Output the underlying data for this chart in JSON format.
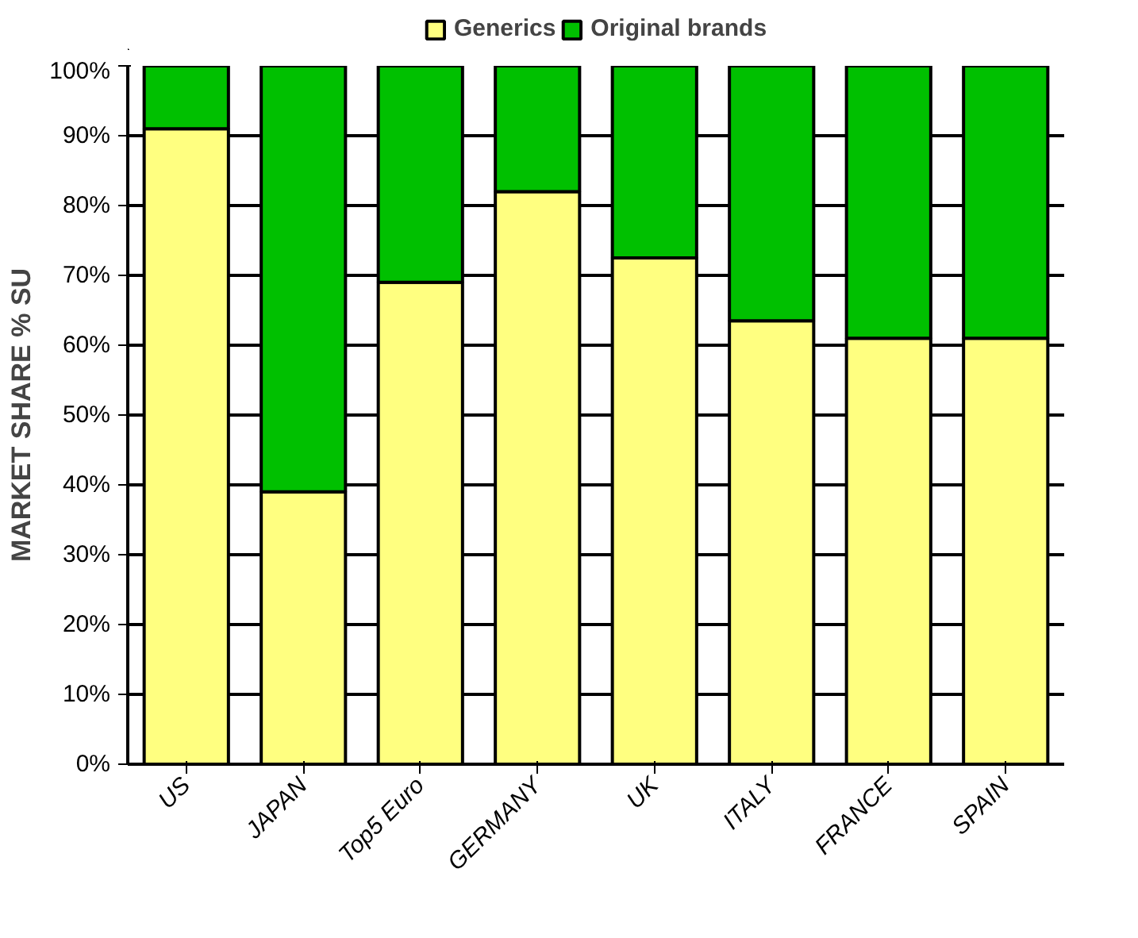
{
  "chart_data": {
    "type": "bar",
    "stacked": true,
    "ylabel": "MARKET SHARE % SU",
    "categories": [
      "US",
      "JAPAN",
      "Top5 Euro",
      "GERMANY",
      "UK",
      "ITALY",
      "FRANCE",
      "SPAIN"
    ],
    "series": [
      {
        "name": "Generics",
        "color": "#ffff80",
        "values": [
          91,
          39,
          69,
          82,
          72.5,
          63.5,
          61,
          61
        ]
      },
      {
        "name": "Original brands",
        "color": "#00c000",
        "values": [
          9,
          61,
          31,
          18,
          27.5,
          36.5,
          39,
          39
        ]
      }
    ],
    "ylim": [
      0,
      100
    ],
    "yticks": [
      {
        "value": 0,
        "label": "0%"
      },
      {
        "value": 10,
        "label": "10%"
      },
      {
        "value": 20,
        "label": "20%"
      },
      {
        "value": 30,
        "label": "30%"
      },
      {
        "value": 40,
        "label": "40%"
      },
      {
        "value": 50,
        "label": "50%"
      },
      {
        "value": 60,
        "label": "60%"
      },
      {
        "value": 70,
        "label": "70%"
      },
      {
        "value": 80,
        "label": "80%"
      },
      {
        "value": 90,
        "label": "90%"
      },
      {
        "value": 100,
        "label": "100%"
      }
    ],
    "grid": "y",
    "legend": "top"
  }
}
